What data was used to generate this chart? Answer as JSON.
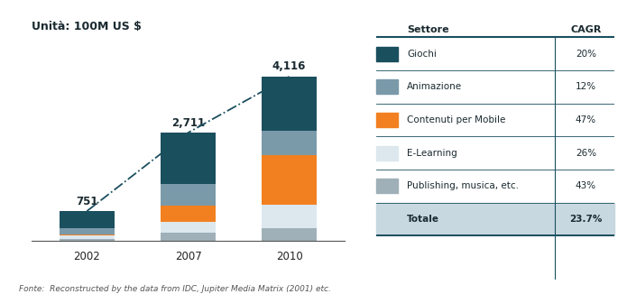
{
  "title": "Unità: 100M US $",
  "years": [
    "2002",
    "2007",
    "2010"
  ],
  "totals": [
    751,
    2711,
    4116
  ],
  "segments": {
    "Publishing, musica, etc.": {
      "values": [
        60,
        217,
        329
      ],
      "color": "#9fb0b8"
    },
    "E-Learning": {
      "values": [
        75,
        271,
        576
      ],
      "color": "#dce8ee"
    },
    "Contenuti per Mobile": {
      "values": [
        38,
        407,
        1234
      ],
      "color": "#f28020"
    },
    "Animazione": {
      "values": [
        150,
        542,
        617
      ],
      "color": "#7a9aaa"
    },
    "Giochi": {
      "values": [
        428,
        1274,
        1360
      ],
      "color": "#1a4f5e"
    }
  },
  "table_rows": [
    [
      "Giochi",
      "20%",
      "#1a4f5e"
    ],
    [
      "Animazione",
      "12%",
      "#7a9aaa"
    ],
    [
      "Contenuti per Mobile",
      "47%",
      "#f28020"
    ],
    [
      "E-Learning",
      "26%",
      "#dce8ee"
    ],
    [
      "Publishing, musica, etc.",
      "43%",
      "#9fb0b8"
    ],
    [
      "Totale",
      "23.7%",
      null
    ]
  ],
  "fonte": "Fonte:  Reconstructed by the data from IDC, Jupiter Media Matrix (2001) etc.",
  "background_color": "#ffffff",
  "line_color": "#1a4f5e",
  "bar_width": 0.55,
  "title_fontsize": 9,
  "label_fontsize": 8.5,
  "tick_fontsize": 8.5
}
